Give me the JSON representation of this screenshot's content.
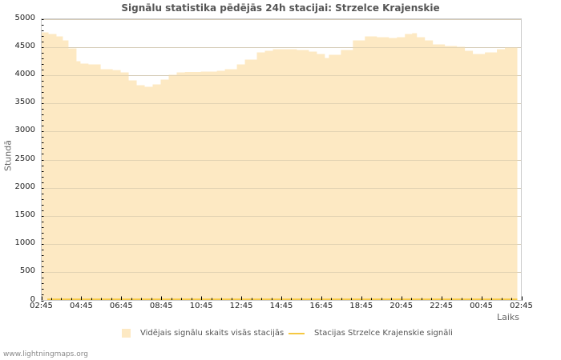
{
  "title": "Signālu statistika pēdējās 24h stacijai: Strzelce Krajenskie",
  "footer": "www.lightningmaps.org",
  "colors": {
    "area_fill": "#fde9c3",
    "station_line": "#f5c842",
    "grid": "#d7c9ad",
    "frame": "#cccccc"
  },
  "legend": {
    "items": [
      {
        "label": "Vidējais signālu skaits visās stacijās",
        "type": "area"
      },
      {
        "label": "Stacijas Strzelce Krajenskie signāli",
        "type": "line"
      }
    ]
  },
  "chart_data": {
    "type": "area",
    "title": "Signālu statistika pēdējās 24h stacijai: Strzelce Krajenskie",
    "xlabel": "Laiks",
    "ylabel": "Stundā",
    "ylim": [
      0,
      5000
    ],
    "yticks": [
      "0",
      "500",
      "1000",
      "1500",
      "2000",
      "2500",
      "3000",
      "3500",
      "4000",
      "4500",
      "5000"
    ],
    "xticks": [
      "02:45",
      "04:45",
      "06:45",
      "08:45",
      "10:45",
      "12:45",
      "14:45",
      "16:45",
      "18:45",
      "20:45",
      "22:45",
      "00:45",
      "02:45"
    ],
    "grid": true,
    "legend_position": "bottom",
    "series": [
      {
        "name": "Vidējais signālu skaits visās stacijās",
        "type": "area",
        "x_hours": [
          0,
          0.36,
          0.76,
          1.08,
          1.36,
          1.76,
          1.96,
          2.36,
          2.97,
          3.57,
          3.97,
          4.37,
          4.77,
          5.17,
          5.57,
          5.97,
          6.37,
          6.77,
          7.18,
          7.98,
          8.78,
          9.18,
          9.78,
          10.18,
          10.78,
          11.18,
          11.58,
          12.18,
          12.78,
          13.38,
          13.78,
          14.18,
          14.38,
          14.98,
          15.58,
          16.18,
          16.78,
          17.38,
          17.78,
          18.18,
          18.54,
          18.78,
          19.18,
          19.58,
          20.18,
          20.78,
          21.18,
          21.58,
          22.18,
          22.78,
          23.18,
          23.8
        ],
        "values": [
          4758,
          4730,
          4688,
          4616,
          4474,
          4247,
          4205,
          4190,
          4105,
          4090,
          4048,
          3906,
          3821,
          3793,
          3835,
          3920,
          4006,
          4048,
          4055,
          4062,
          4077,
          4105,
          4190,
          4276,
          4403,
          4432,
          4460,
          4460,
          4446,
          4418,
          4375,
          4304,
          4361,
          4446,
          4616,
          4688,
          4673,
          4659,
          4673,
          4730,
          4744,
          4673,
          4616,
          4545,
          4517,
          4503,
          4432,
          4375,
          4403,
          4460,
          4490,
          4503
        ]
      },
      {
        "name": "Stacijas Strzelce Krajenskie signāli",
        "type": "line",
        "x_hours": [
          0.3,
          24
        ],
        "values": [
          10,
          10
        ]
      }
    ]
  }
}
